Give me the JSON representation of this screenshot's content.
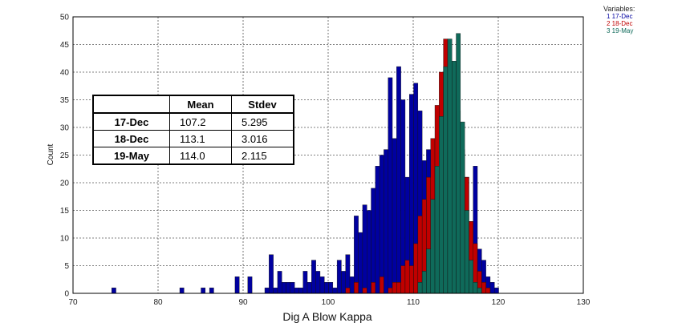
{
  "chart_data": {
    "type": "histogram",
    "title": "",
    "xlabel": "Dig A Blow Kappa",
    "ylabel": "Count",
    "xlim": [
      70,
      130
    ],
    "ylim": [
      0,
      50
    ],
    "x_ticks": [
      70,
      80,
      90,
      100,
      110,
      120,
      130
    ],
    "y_ticks": [
      0,
      5,
      10,
      15,
      20,
      25,
      30,
      35,
      40,
      45,
      50
    ],
    "grid": true,
    "bin_width": 0.5,
    "legend": {
      "title": "Variables:",
      "placement": "top-right-outside",
      "entries": [
        "1 17-Dec",
        "2 18-Dec",
        "3 19-May"
      ]
    },
    "series": [
      {
        "name": "17-Dec",
        "color": "#0000a0",
        "bins": [
          [
            74.8,
            1
          ],
          [
            82.8,
            1
          ],
          [
            85.3,
            1
          ],
          [
            86.3,
            1
          ],
          [
            89.3,
            3
          ],
          [
            90.8,
            3
          ],
          [
            92.8,
            1
          ],
          [
            93.3,
            7
          ],
          [
            93.8,
            1
          ],
          [
            94.3,
            4
          ],
          [
            94.8,
            2
          ],
          [
            95.3,
            2
          ],
          [
            95.8,
            2
          ],
          [
            96.3,
            1
          ],
          [
            96.8,
            1
          ],
          [
            97.3,
            4
          ],
          [
            97.8,
            2
          ],
          [
            98.3,
            6
          ],
          [
            98.8,
            4
          ],
          [
            99.3,
            3
          ],
          [
            99.8,
            2
          ],
          [
            100.3,
            2
          ],
          [
            100.8,
            1
          ],
          [
            101.3,
            6
          ],
          [
            101.8,
            4
          ],
          [
            102.3,
            7
          ],
          [
            102.8,
            3
          ],
          [
            103.3,
            14
          ],
          [
            103.8,
            11
          ],
          [
            104.3,
            16
          ],
          [
            104.8,
            15
          ],
          [
            105.3,
            19
          ],
          [
            105.8,
            23
          ],
          [
            106.3,
            25
          ],
          [
            106.8,
            26
          ],
          [
            107.3,
            39
          ],
          [
            107.8,
            28
          ],
          [
            108.3,
            41
          ],
          [
            108.8,
            35
          ],
          [
            109.3,
            21
          ],
          [
            109.8,
            36
          ],
          [
            110.3,
            38
          ],
          [
            110.8,
            33
          ],
          [
            111.3,
            24
          ],
          [
            111.8,
            26
          ],
          [
            112.3,
            20
          ],
          [
            112.8,
            17
          ],
          [
            113.3,
            25
          ],
          [
            113.8,
            23
          ],
          [
            114.3,
            27
          ],
          [
            114.8,
            20
          ],
          [
            115.3,
            22
          ],
          [
            115.8,
            18
          ],
          [
            116.3,
            21
          ],
          [
            116.8,
            13
          ],
          [
            117.3,
            23
          ],
          [
            117.8,
            8
          ],
          [
            118.3,
            6
          ],
          [
            118.8,
            3
          ],
          [
            119.3,
            2
          ],
          [
            119.8,
            1
          ]
        ]
      },
      {
        "name": "18-Dec",
        "color": "#c00000",
        "bins": [
          [
            102.3,
            1
          ],
          [
            103.3,
            2
          ],
          [
            104.3,
            1
          ],
          [
            105.3,
            2
          ],
          [
            106.3,
            3
          ],
          [
            107.3,
            1
          ],
          [
            107.8,
            2
          ],
          [
            108.3,
            2
          ],
          [
            108.8,
            5
          ],
          [
            109.3,
            6
          ],
          [
            109.8,
            5
          ],
          [
            110.3,
            9
          ],
          [
            110.8,
            14
          ],
          [
            111.3,
            17
          ],
          [
            111.8,
            21
          ],
          [
            112.3,
            28
          ],
          [
            112.8,
            34
          ],
          [
            113.3,
            40
          ],
          [
            113.8,
            46
          ],
          [
            114.3,
            41
          ],
          [
            114.8,
            36
          ],
          [
            115.3,
            33
          ],
          [
            115.8,
            26
          ],
          [
            116.3,
            21
          ],
          [
            116.8,
            13
          ],
          [
            117.3,
            9
          ],
          [
            117.8,
            4
          ],
          [
            118.3,
            2
          ],
          [
            118.8,
            1
          ]
        ]
      },
      {
        "name": "19-May",
        "color": "#0f6a5a",
        "bins": [
          [
            110.8,
            2
          ],
          [
            111.3,
            4
          ],
          [
            111.8,
            8
          ],
          [
            112.3,
            17
          ],
          [
            112.8,
            23
          ],
          [
            113.3,
            32
          ],
          [
            113.8,
            41
          ],
          [
            114.3,
            46
          ],
          [
            114.8,
            42
          ],
          [
            115.3,
            47
          ],
          [
            115.8,
            31
          ],
          [
            116.3,
            15
          ],
          [
            116.8,
            6
          ],
          [
            117.3,
            2
          ],
          [
            117.8,
            1
          ]
        ]
      }
    ],
    "table": {
      "headers": [
        "",
        "Mean",
        "Stdev"
      ],
      "rows": [
        [
          "17-Dec",
          "107.2",
          "5.295"
        ],
        [
          "18-Dec",
          "113.1",
          "3.016"
        ],
        [
          "19-May",
          "114.0",
          "2.115"
        ]
      ]
    }
  }
}
